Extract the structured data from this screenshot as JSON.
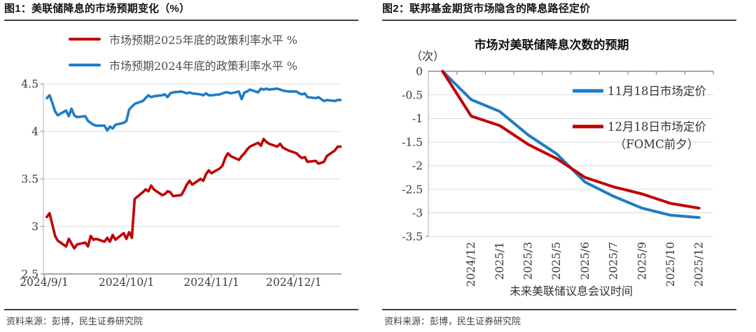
{
  "figure1": {
    "title": "图1：美联储降息的市场预期变化（%）",
    "source": "资料来源：彭博，民生证券研究院",
    "legend": [
      {
        "label": "市场预期2025年底的政策利率水平 %",
        "color": "#C00000"
      },
      {
        "label": "市场预期2024年底的政策利率水平 %",
        "color": "#1F7CC5"
      }
    ]
  },
  "figure2": {
    "title": "图2：联邦基金期货市场隐含的降息路径定价",
    "source": "资料来源：彭博，民生证券研究院"
  },
  "colors": {
    "red": "#C00000",
    "blue": "#1F7CC5",
    "grid": "#DCDCDC",
    "axis": "#8A8A8A",
    "tick_text": "#3A3A3A"
  },
  "chart_data": [
    {
      "type": "line",
      "title": "图1：美联储降息的市场预期变化（%）",
      "xlabel": "",
      "ylabel": "%",
      "ylim": [
        2.5,
        4.5
      ],
      "y_ticks": [
        4.5,
        4,
        3.5,
        3,
        2.5
      ],
      "grid": "horizontal",
      "legend_position": "top",
      "x_origin": "2024/9/1",
      "x_ticks": [
        "2024/9/1",
        "2024/10/1",
        "2024/11/1",
        "2024/12/1"
      ],
      "dates": [
        "2024/9/2",
        "2024/9/3",
        "2024/9/4",
        "2024/9/5",
        "2024/9/6",
        "2024/9/9",
        "2024/9/10",
        "2024/9/11",
        "2024/9/12",
        "2024/9/13",
        "2024/9/16",
        "2024/9/17",
        "2024/9/18",
        "2024/9/19",
        "2024/9/20",
        "2024/9/23",
        "2024/9/24",
        "2024/9/25",
        "2024/9/26",
        "2024/9/27",
        "2024/9/30",
        "2024/10/1",
        "2024/10/2",
        "2024/10/3",
        "2024/10/4",
        "2024/10/7",
        "2024/10/8",
        "2024/10/9",
        "2024/10/10",
        "2024/10/11",
        "2024/10/14",
        "2024/10/15",
        "2024/10/16",
        "2024/10/17",
        "2024/10/18",
        "2024/10/21",
        "2024/10/22",
        "2024/10/23",
        "2024/10/24",
        "2024/10/25",
        "2024/10/28",
        "2024/10/29",
        "2024/10/30",
        "2024/10/31",
        "2024/11/1",
        "2024/11/4",
        "2024/11/5",
        "2024/11/6",
        "2024/11/7",
        "2024/11/8",
        "2024/11/11",
        "2024/11/12",
        "2024/11/13",
        "2024/11/14",
        "2024/11/15",
        "2024/11/18",
        "2024/11/19",
        "2024/11/20",
        "2024/11/21",
        "2024/11/22",
        "2024/11/25",
        "2024/11/26",
        "2024/11/27",
        "2024/11/29",
        "2024/12/2",
        "2024/12/3",
        "2024/12/4",
        "2024/12/5",
        "2024/12/6",
        "2024/12/9",
        "2024/12/10",
        "2024/12/11",
        "2024/12/12",
        "2024/12/13",
        "2024/12/16",
        "2024/12/17",
        "2024/12/18"
      ],
      "series": [
        {
          "name": "市场预期2025年底的政策利率水平 %",
          "color": "#C00000",
          "values": [
            3.1,
            3.14,
            3.02,
            2.9,
            2.85,
            2.79,
            2.87,
            2.82,
            2.77,
            2.81,
            2.83,
            2.79,
            2.9,
            2.86,
            2.87,
            2.84,
            2.88,
            2.84,
            2.91,
            2.86,
            2.93,
            2.87,
            2.94,
            2.88,
            3.29,
            3.36,
            3.39,
            3.37,
            3.43,
            3.39,
            3.33,
            3.34,
            3.37,
            3.36,
            3.32,
            3.33,
            3.38,
            3.44,
            3.48,
            3.44,
            3.5,
            3.48,
            3.55,
            3.59,
            3.56,
            3.61,
            3.64,
            3.72,
            3.77,
            3.74,
            3.7,
            3.74,
            3.77,
            3.81,
            3.84,
            3.88,
            3.85,
            3.92,
            3.89,
            3.87,
            3.84,
            3.87,
            3.83,
            3.8,
            3.77,
            3.74,
            3.72,
            3.73,
            3.68,
            3.69,
            3.66,
            3.67,
            3.68,
            3.74,
            3.8,
            3.84,
            3.84
          ]
        },
        {
          "name": "市场预期2024年底的政策利率水平 %",
          "color": "#1F7CC5",
          "values": [
            4.35,
            4.38,
            4.3,
            4.21,
            4.17,
            4.22,
            4.16,
            4.24,
            4.17,
            4.15,
            4.16,
            4.11,
            4.09,
            4.07,
            4.06,
            4.06,
            4.01,
            4.05,
            4.03,
            4.07,
            4.09,
            4.11,
            4.23,
            4.26,
            4.29,
            4.32,
            4.35,
            4.38,
            4.36,
            4.37,
            4.38,
            4.39,
            4.36,
            4.4,
            4.41,
            4.42,
            4.41,
            4.4,
            4.41,
            4.4,
            4.39,
            4.38,
            4.4,
            4.38,
            4.38,
            4.39,
            4.4,
            4.41,
            4.41,
            4.4,
            4.42,
            4.34,
            4.41,
            4.42,
            4.44,
            4.41,
            4.45,
            4.44,
            4.45,
            4.44,
            4.45,
            4.44,
            4.43,
            4.42,
            4.42,
            4.4,
            4.39,
            4.4,
            4.36,
            4.35,
            4.36,
            4.34,
            4.32,
            4.33,
            4.32,
            4.33,
            4.33
          ]
        }
      ],
      "source": "资料来源：彭博，民生证券研究院"
    },
    {
      "type": "line",
      "title": "市场对美联储降息次数的预期",
      "y_unit": "（次）",
      "xlabel": "未来美联储议息会议时间",
      "ylim": [
        -3.5,
        0
      ],
      "y_ticks": [
        0,
        -0.5,
        -1,
        -1.5,
        -2,
        -2.5,
        -3,
        -3.5
      ],
      "grid": "horizontal",
      "legend_position": "inside-right",
      "categories": [
        "",
        "2024/12",
        "2025/1",
        "2025/3",
        "2025/5",
        "2025/6",
        "2025/7",
        "2025/9",
        "2025/10",
        "2025/12"
      ],
      "series": [
        {
          "name": "11月18日市场定价",
          "color": "#1F7CC5",
          "values": [
            0,
            -0.6,
            -0.85,
            -1.35,
            -1.75,
            -2.35,
            -2.65,
            -2.9,
            -3.05,
            -3.1
          ]
        },
        {
          "name": "12月18日市场定价（FOMC前夕）",
          "color": "#C00000",
          "values": [
            0,
            -0.95,
            -1.15,
            -1.55,
            -1.85,
            -2.25,
            -2.45,
            -2.6,
            -2.8,
            -2.9
          ]
        }
      ],
      "legend": [
        {
          "label": "11月18日市场定价",
          "color": "#1F7CC5"
        },
        {
          "label": "12月18日市场定价",
          "label2": "（FOMC前夕）",
          "color": "#C00000"
        }
      ],
      "source": "资料来源：彭博，民生证券研究院"
    }
  ]
}
